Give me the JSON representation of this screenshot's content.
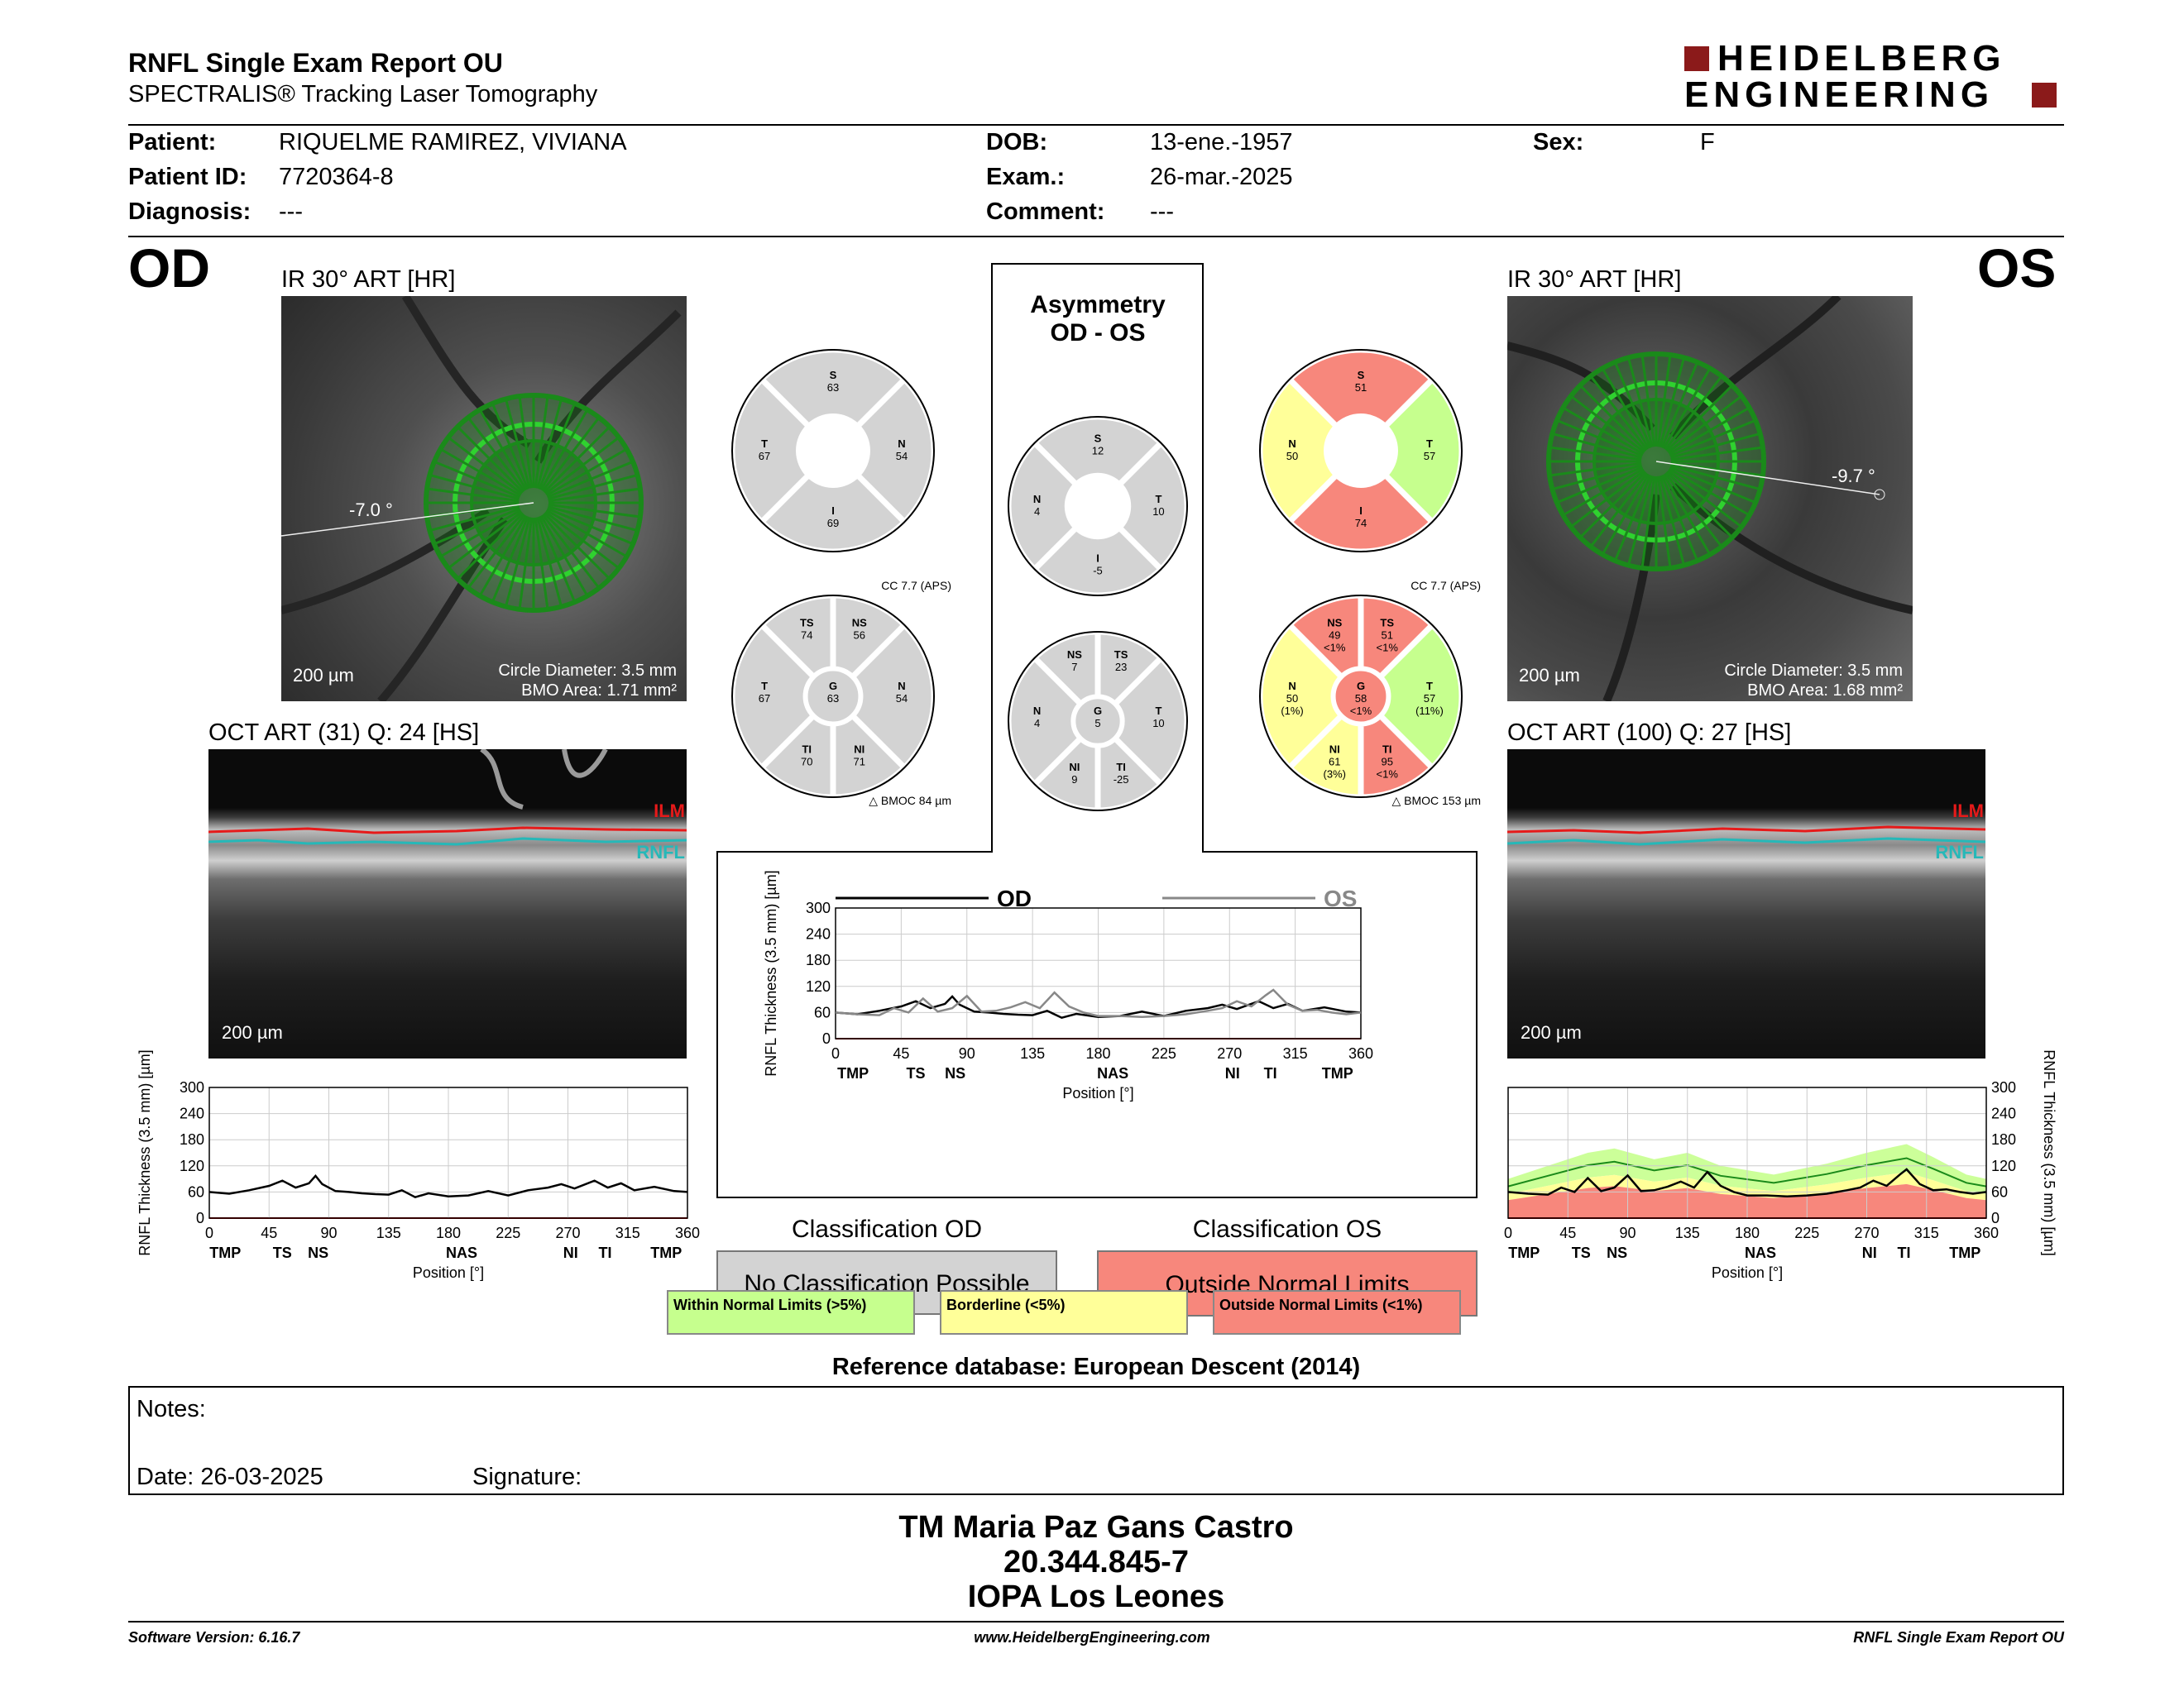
{
  "header": {
    "title": "RNFL Single Exam Report OU",
    "subtitle": "SPECTRALIS® Tracking Laser Tomography",
    "logo_line1": "HEIDELBERG",
    "logo_line2": "ENGINEERING"
  },
  "patient": {
    "patient_label": "Patient:",
    "patient_value": "RIQUELME RAMIREZ, VIVIANA",
    "id_label": "Patient ID:",
    "id_value": "7720364-8",
    "diagnosis_label": "Diagnosis:",
    "diagnosis_value": "---",
    "dob_label": "DOB:",
    "dob_value": "13-ene.-1957",
    "exam_label": "Exam.:",
    "exam_value": "26-mar.-2025",
    "comment_label": "Comment:",
    "comment_value": "---",
    "sex_label": "Sex:",
    "sex_value": "F"
  },
  "od": {
    "eye_label": "OD",
    "ir_title": "IR 30° ART [HR]",
    "angle": "-7.0 °",
    "scale": "200 µm",
    "circle_diameter": "Circle Diameter: 3.5 mm",
    "bmo_area": "BMO Area: 1.71 mm²",
    "oct_title": "OCT ART (31) Q: 24 [HS]",
    "oct_scale": "200 µm",
    "classification_title": "Classification OD",
    "classification_value": "No Classification Possible",
    "cc": "CC 7.7 (APS)",
    "bmoc": "BMOC 84 µm",
    "quad": {
      "S": "63",
      "T": "67",
      "N": "54",
      "I": "69"
    },
    "sect": {
      "TS": "74",
      "NS": "56",
      "T": "67",
      "G": "63",
      "N": "54",
      "TI": "70",
      "NI": "71"
    }
  },
  "os": {
    "eye_label": "OS",
    "ir_title": "IR 30° ART [HR]",
    "angle": "-9.7 °",
    "scale": "200 µm",
    "circle_diameter": "Circle Diameter: 3.5 mm",
    "bmo_area": "BMO Area: 1.68 mm²",
    "oct_title": "OCT ART (100) Q: 27 [HS]",
    "oct_scale": "200 µm",
    "classification_title": "Classification OS",
    "classification_value": "Outside Normal Limits",
    "cc": "CC 7.7 (APS)",
    "bmoc": "BMOC 153 µm",
    "quad": {
      "S": "51",
      "N": "50",
      "T": "57",
      "I": "74"
    },
    "sect": {
      "NS": "49",
      "NS_p": "<1%",
      "TS": "51",
      "TS_p": "<1%",
      "N": "50",
      "N_p": "(1%)",
      "G": "58",
      "G_p": "<1%",
      "T": "57",
      "T_p": "(11%)",
      "NI": "61",
      "NI_p": "(3%)",
      "TI": "95",
      "TI_p": "<1%"
    }
  },
  "asym": {
    "title1": "Asymmetry",
    "title2": "OD - OS",
    "quad": {
      "S": "12",
      "N": "4",
      "T": "10",
      "I": "-5"
    },
    "sect": {
      "NS": "7",
      "TS": "23",
      "N": "4",
      "G": "5",
      "T": "10",
      "NI": "9",
      "TI": "-25"
    }
  },
  "layer_labels": {
    "ilm": "ILM",
    "rnfl": "RNFL"
  },
  "chart_data": [
    {
      "type": "line",
      "title": "",
      "xlabel": "Position [°]",
      "ylabel": "RNFL Thickness (3.5 mm) [µm]",
      "xlim": [
        0,
        360
      ],
      "ylim": [
        0,
        300
      ],
      "xticks": [
        "0",
        "45",
        "90",
        "135",
        "180",
        "225",
        "270",
        "315",
        "360"
      ],
      "yticks": [
        "0",
        "60",
        "120",
        "180",
        "240",
        "300"
      ],
      "sectors": [
        "TMP",
        "TS",
        "NS",
        "NAS",
        "NI",
        "TI",
        "TMP"
      ],
      "series": [
        {
          "name": "OD",
          "x": [
            0,
            15,
            30,
            45,
            55,
            65,
            75,
            80,
            85,
            95,
            105,
            115,
            125,
            135,
            145,
            155,
            165,
            180,
            195,
            210,
            225,
            240,
            255,
            265,
            275,
            290,
            300,
            310,
            320,
            335,
            350,
            360
          ],
          "values": [
            60,
            56,
            64,
            74,
            86,
            70,
            80,
            97,
            78,
            62,
            60,
            57,
            55,
            54,
            64,
            48,
            57,
            50,
            52,
            62,
            52,
            64,
            70,
            78,
            68,
            86,
            70,
            80,
            64,
            72,
            62,
            60
          ]
        }
      ]
    },
    {
      "type": "line",
      "title": "",
      "xlabel": "Position [°]",
      "ylabel": "RNFL Thickness (3.5 mm) [µm]",
      "xlim": [
        0,
        360
      ],
      "ylim": [
        0,
        300
      ],
      "xticks": [
        "0",
        "45",
        "90",
        "135",
        "180",
        "225",
        "270",
        "315",
        "360"
      ],
      "yticks": [
        "0",
        "60",
        "120",
        "180",
        "240",
        "300"
      ],
      "sectors": [
        "TMP",
        "TS",
        "NS",
        "NAS",
        "NI",
        "TI",
        "TMP"
      ],
      "series": [
        {
          "name": "OS",
          "x": [
            0,
            15,
            30,
            40,
            50,
            60,
            70,
            80,
            90,
            100,
            110,
            120,
            130,
            140,
            150,
            160,
            170,
            180,
            195,
            210,
            225,
            240,
            255,
            265,
            275,
            285,
            295,
            300,
            310,
            320,
            330,
            340,
            350,
            360
          ],
          "values": [
            60,
            56,
            54,
            70,
            60,
            92,
            62,
            70,
            98,
            62,
            64,
            72,
            84,
            70,
            106,
            74,
            60,
            52,
            52,
            50,
            52,
            56,
            64,
            70,
            86,
            74,
            100,
            112,
            78,
            64,
            66,
            60,
            56,
            60
          ]
        }
      ]
    },
    {
      "type": "line",
      "title": "",
      "xlabel": "Position [°]",
      "ylabel": "RNFL Thickness (3.5 mm) [µm]",
      "xlim": [
        0,
        360
      ],
      "ylim": [
        0,
        300
      ],
      "xticks": [
        "0",
        "45",
        "90",
        "135",
        "180",
        "225",
        "270",
        "315",
        "360"
      ],
      "yticks": [
        "0",
        "60",
        "120",
        "180",
        "240",
        "300"
      ],
      "sectors": [
        "TMP",
        "TS",
        "NS",
        "NAS",
        "NI",
        "TI",
        "TMP"
      ],
      "legend": [
        "OD",
        "OS"
      ],
      "series": [
        {
          "name": "OD",
          "x": [
            0,
            15,
            30,
            45,
            55,
            65,
            75,
            80,
            85,
            95,
            105,
            115,
            125,
            135,
            145,
            155,
            165,
            180,
            195,
            210,
            225,
            240,
            255,
            265,
            275,
            290,
            300,
            310,
            320,
            335,
            350,
            360
          ],
          "values": [
            60,
            56,
            64,
            74,
            86,
            70,
            80,
            97,
            78,
            62,
            60,
            57,
            55,
            54,
            64,
            48,
            57,
            50,
            52,
            62,
            52,
            64,
            70,
            78,
            68,
            86,
            70,
            80,
            64,
            72,
            62,
            60
          ]
        },
        {
          "name": "OS",
          "x": [
            0,
            15,
            30,
            40,
            50,
            60,
            70,
            80,
            90,
            100,
            110,
            120,
            130,
            140,
            150,
            160,
            170,
            180,
            195,
            210,
            225,
            240,
            255,
            265,
            275,
            285,
            295,
            300,
            310,
            320,
            330,
            340,
            350,
            360
          ],
          "values": [
            60,
            56,
            54,
            70,
            60,
            92,
            62,
            70,
            98,
            62,
            64,
            72,
            84,
            70,
            106,
            74,
            60,
            52,
            52,
            50,
            52,
            56,
            64,
            70,
            86,
            74,
            100,
            112,
            78,
            64,
            66,
            60,
            56,
            60
          ]
        }
      ]
    }
  ],
  "legend": {
    "wnl": "Within Normal Limits (>5%)",
    "bl": "Borderline (<5%)",
    "onl": "Outside Normal Limits (<1%)",
    "colors": {
      "wnl": "#c6ff8e",
      "bl": "#ffff99",
      "onl": "#f7877c",
      "gray": "#d3d3d3"
    }
  },
  "reference": "Reference database: European Descent (2014)",
  "notes": {
    "notes_label": "Notes:",
    "date_label": "Date: 26-03-2025",
    "signature_label": "Signature:"
  },
  "signature": {
    "line1": "TM Maria Paz Gans Castro",
    "line2": "20.344.845-7",
    "line3": "IOPA Los Leones"
  },
  "footer": {
    "version": "Software Version: 6.16.7",
    "url": "www.HeidelbergEngineering.com",
    "report": "RNFL Single Exam Report OU"
  }
}
